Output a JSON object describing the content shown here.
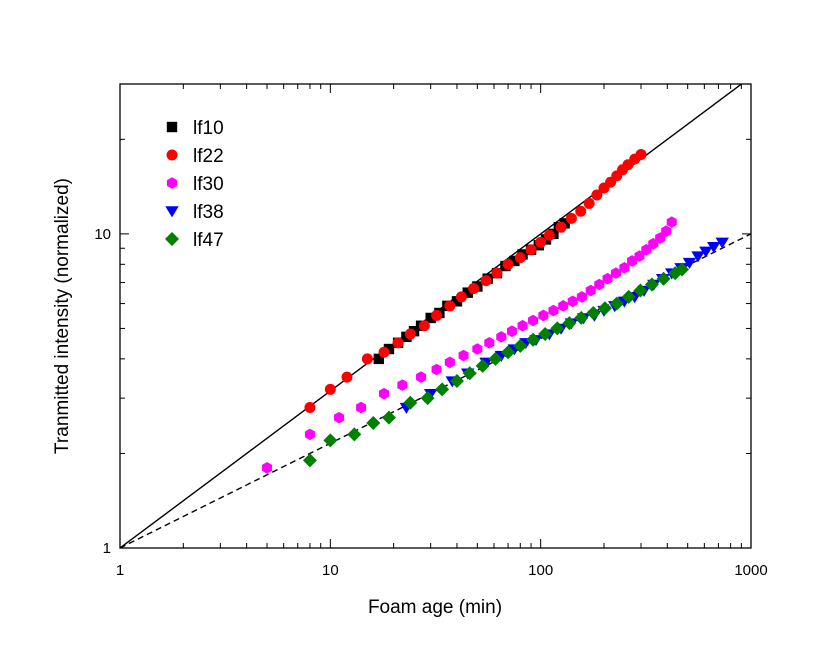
{
  "chart_data": {
    "type": "scatter",
    "title": "",
    "xlabel": "Foam age (min)",
    "ylabel": "Tranmitted intensity (normalized)",
    "xscale": "log",
    "yscale": "log",
    "xlim": [
      1,
      1000
    ],
    "ylim": [
      1,
      30
    ],
    "x_ticks": [
      "1",
      "10",
      "100",
      "1000"
    ],
    "y_ticks": [
      "1",
      "10"
    ],
    "grid": false,
    "legend_position": "top-left",
    "series": [
      {
        "name": "lf10",
        "marker": "square",
        "color": "#000000",
        "points": [
          [
            17,
            4.0
          ],
          [
            19,
            4.3
          ],
          [
            21,
            4.5
          ],
          [
            23,
            4.7
          ],
          [
            25,
            4.9
          ],
          [
            27,
            5.1
          ],
          [
            30,
            5.4
          ],
          [
            33,
            5.6
          ],
          [
            36,
            5.9
          ],
          [
            40,
            6.1
          ],
          [
            45,
            6.5
          ],
          [
            50,
            6.8
          ],
          [
            56,
            7.2
          ],
          [
            62,
            7.5
          ],
          [
            68,
            7.9
          ],
          [
            75,
            8.2
          ],
          [
            82,
            8.6
          ],
          [
            90,
            8.9
          ],
          [
            98,
            9.2
          ],
          [
            106,
            9.6
          ],
          [
            115,
            10.0
          ],
          [
            122,
            10.5
          ],
          [
            130,
            10.8
          ]
        ]
      },
      {
        "name": "lf22",
        "marker": "circle",
        "color": "#ff0000",
        "points": [
          [
            8,
            2.8
          ],
          [
            10,
            3.2
          ],
          [
            12,
            3.5
          ],
          [
            15,
            4.0
          ],
          [
            18,
            4.2
          ],
          [
            21,
            4.5
          ],
          [
            24,
            4.8
          ],
          [
            28,
            5.1
          ],
          [
            32,
            5.5
          ],
          [
            37,
            5.9
          ],
          [
            42,
            6.3
          ],
          [
            48,
            6.7
          ],
          [
            55,
            7.1
          ],
          [
            62,
            7.5
          ],
          [
            70,
            8.0
          ],
          [
            80,
            8.4
          ],
          [
            90,
            8.9
          ],
          [
            100,
            9.4
          ],
          [
            110,
            9.9
          ],
          [
            125,
            10.5
          ],
          [
            140,
            11.2
          ],
          [
            155,
            11.8
          ],
          [
            170,
            12.5
          ],
          [
            185,
            13.3
          ],
          [
            200,
            14.0
          ],
          [
            215,
            14.6
          ],
          [
            230,
            15.3
          ],
          [
            245,
            16.0
          ],
          [
            260,
            16.6
          ],
          [
            280,
            17.3
          ],
          [
            300,
            17.9
          ]
        ]
      },
      {
        "name": "lf30",
        "marker": "hexagon",
        "color": "#ff00ff",
        "points": [
          [
            5,
            1.8
          ],
          [
            8,
            2.3
          ],
          [
            11,
            2.6
          ],
          [
            14,
            2.8
          ],
          [
            18,
            3.1
          ],
          [
            22,
            3.3
          ],
          [
            27,
            3.5
          ],
          [
            32,
            3.7
          ],
          [
            37,
            3.9
          ],
          [
            43,
            4.1
          ],
          [
            50,
            4.3
          ],
          [
            57,
            4.5
          ],
          [
            65,
            4.7
          ],
          [
            73,
            4.9
          ],
          [
            82,
            5.1
          ],
          [
            92,
            5.3
          ],
          [
            103,
            5.5
          ],
          [
            115,
            5.7
          ],
          [
            128,
            5.9
          ],
          [
            142,
            6.1
          ],
          [
            157,
            6.3
          ],
          [
            173,
            6.6
          ],
          [
            190,
            6.9
          ],
          [
            208,
            7.2
          ],
          [
            228,
            7.5
          ],
          [
            250,
            7.8
          ],
          [
            272,
            8.2
          ],
          [
            295,
            8.5
          ],
          [
            318,
            8.9
          ],
          [
            343,
            9.3
          ],
          [
            370,
            9.7
          ],
          [
            395,
            10.2
          ],
          [
            420,
            10.9
          ]
        ]
      },
      {
        "name": "lf38",
        "marker": "triangle-down",
        "color": "#0000ff",
        "points": [
          [
            23,
            2.8
          ],
          [
            30,
            3.1
          ],
          [
            38,
            3.4
          ],
          [
            45,
            3.6
          ],
          [
            55,
            3.9
          ],
          [
            65,
            4.1
          ],
          [
            75,
            4.3
          ],
          [
            85,
            4.5
          ],
          [
            95,
            4.6
          ],
          [
            110,
            4.8
          ],
          [
            125,
            5.0
          ],
          [
            140,
            5.2
          ],
          [
            160,
            5.4
          ],
          [
            180,
            5.5
          ],
          [
            200,
            5.7
          ],
          [
            225,
            5.9
          ],
          [
            250,
            6.1
          ],
          [
            280,
            6.3
          ],
          [
            310,
            6.6
          ],
          [
            345,
            6.9
          ],
          [
            380,
            7.2
          ],
          [
            420,
            7.5
          ],
          [
            465,
            7.8
          ],
          [
            510,
            8.1
          ],
          [
            560,
            8.5
          ],
          [
            610,
            8.8
          ],
          [
            665,
            9.1
          ],
          [
            730,
            9.4
          ]
        ]
      },
      {
        "name": "lf47",
        "marker": "diamond",
        "color": "#008000",
        "points": [
          [
            8,
            1.9
          ],
          [
            10,
            2.2
          ],
          [
            13,
            2.3
          ],
          [
            16,
            2.5
          ],
          [
            19,
            2.6
          ],
          [
            24,
            2.9
          ],
          [
            29,
            3.0
          ],
          [
            34,
            3.2
          ],
          [
            40,
            3.4
          ],
          [
            46,
            3.6
          ],
          [
            53,
            3.8
          ],
          [
            61,
            4.0
          ],
          [
            70,
            4.2
          ],
          [
            80,
            4.4
          ],
          [
            92,
            4.6
          ],
          [
            105,
            4.8
          ],
          [
            120,
            5.0
          ],
          [
            137,
            5.2
          ],
          [
            156,
            5.4
          ],
          [
            178,
            5.6
          ],
          [
            202,
            5.8
          ],
          [
            230,
            6.0
          ],
          [
            262,
            6.3
          ],
          [
            298,
            6.6
          ],
          [
            338,
            6.9
          ],
          [
            384,
            7.2
          ],
          [
            436,
            7.5
          ],
          [
            470,
            7.7
          ]
        ]
      }
    ],
    "reference_lines": [
      {
        "style": "solid",
        "color": "#000000",
        "points": [
          [
            1,
            1
          ],
          [
            1000,
            31.6
          ]
        ]
      },
      {
        "style": "dashed",
        "color": "#000000",
        "points": [
          [
            1,
            1
          ],
          [
            1000,
            10
          ]
        ]
      }
    ]
  }
}
